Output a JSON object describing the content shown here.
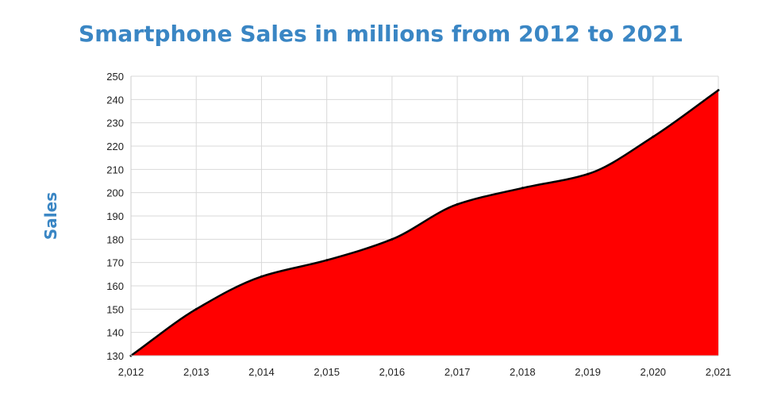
{
  "chart_data": {
    "type": "area",
    "title": "Smartphone Sales in millions from 2012 to 2021",
    "xlabel": "",
    "ylabel": "Sales",
    "x": [
      2012,
      2013,
      2014,
      2015,
      2016,
      2017,
      2018,
      2019,
      2020,
      2021
    ],
    "x_tick_labels": [
      "2,012",
      "2,013",
      "2,014",
      "2,015",
      "2,016",
      "2,017",
      "2,018",
      "2,019",
      "2,020",
      "2,021"
    ],
    "values": [
      130,
      150,
      164,
      171,
      180,
      195,
      202,
      208,
      224,
      244
    ],
    "ylim": [
      130,
      250
    ],
    "y_ticks": [
      130,
      140,
      150,
      160,
      170,
      180,
      190,
      200,
      210,
      220,
      230,
      240,
      250
    ],
    "grid": true,
    "fill_color": "#ff0000",
    "line_color": "#000000",
    "title_color": "#3a86c4"
  }
}
